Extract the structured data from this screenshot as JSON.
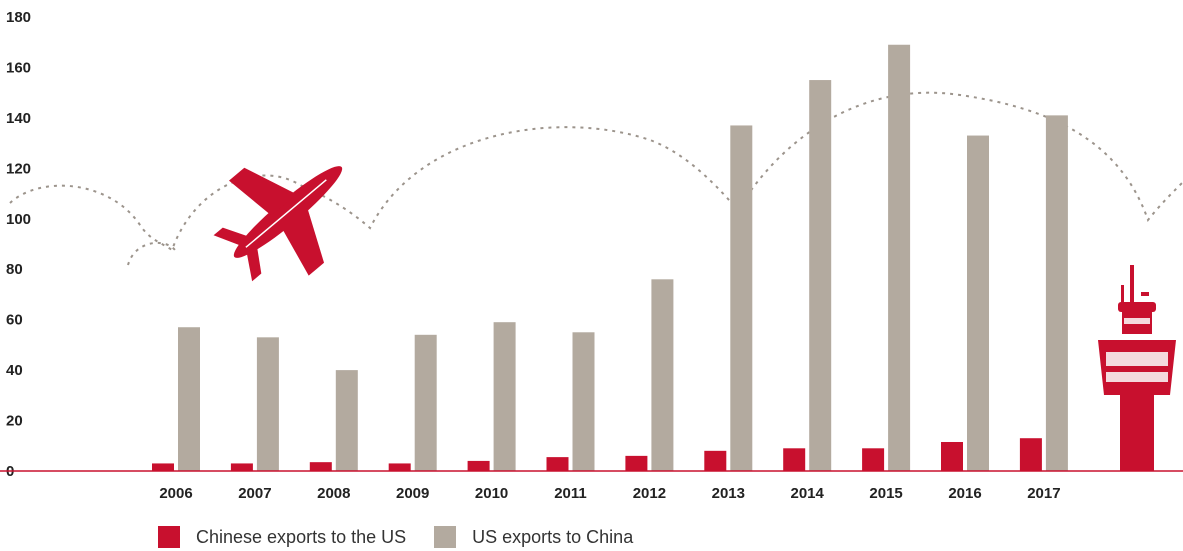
{
  "chart_data": {
    "type": "bar",
    "categories": [
      "2006",
      "2007",
      "2008",
      "2009",
      "2010",
      "2011",
      "2012",
      "2013",
      "2014",
      "2015",
      "2016",
      "2017"
    ],
    "series": [
      {
        "name": "Chinese exports to the US",
        "color": "#c8102e",
        "values": [
          3,
          3,
          3.5,
          3,
          4,
          5.5,
          6,
          8,
          9,
          9,
          11.5,
          13
        ]
      },
      {
        "name": "US exports to China",
        "color": "#b3aa9f",
        "values": [
          57,
          53,
          40,
          54,
          59,
          55,
          76,
          137,
          155,
          169,
          133,
          141
        ]
      }
    ],
    "y_ticks": [
      "0",
      "20",
      "40",
      "60",
      "80",
      "100",
      "120",
      "140",
      "160",
      "180"
    ],
    "ylim": [
      0,
      180
    ],
    "grid": false,
    "legend_position": "bottom-left",
    "decorations": [
      "airplane-icon",
      "control-tower-icon",
      "dotted-cloud-line"
    ]
  }
}
